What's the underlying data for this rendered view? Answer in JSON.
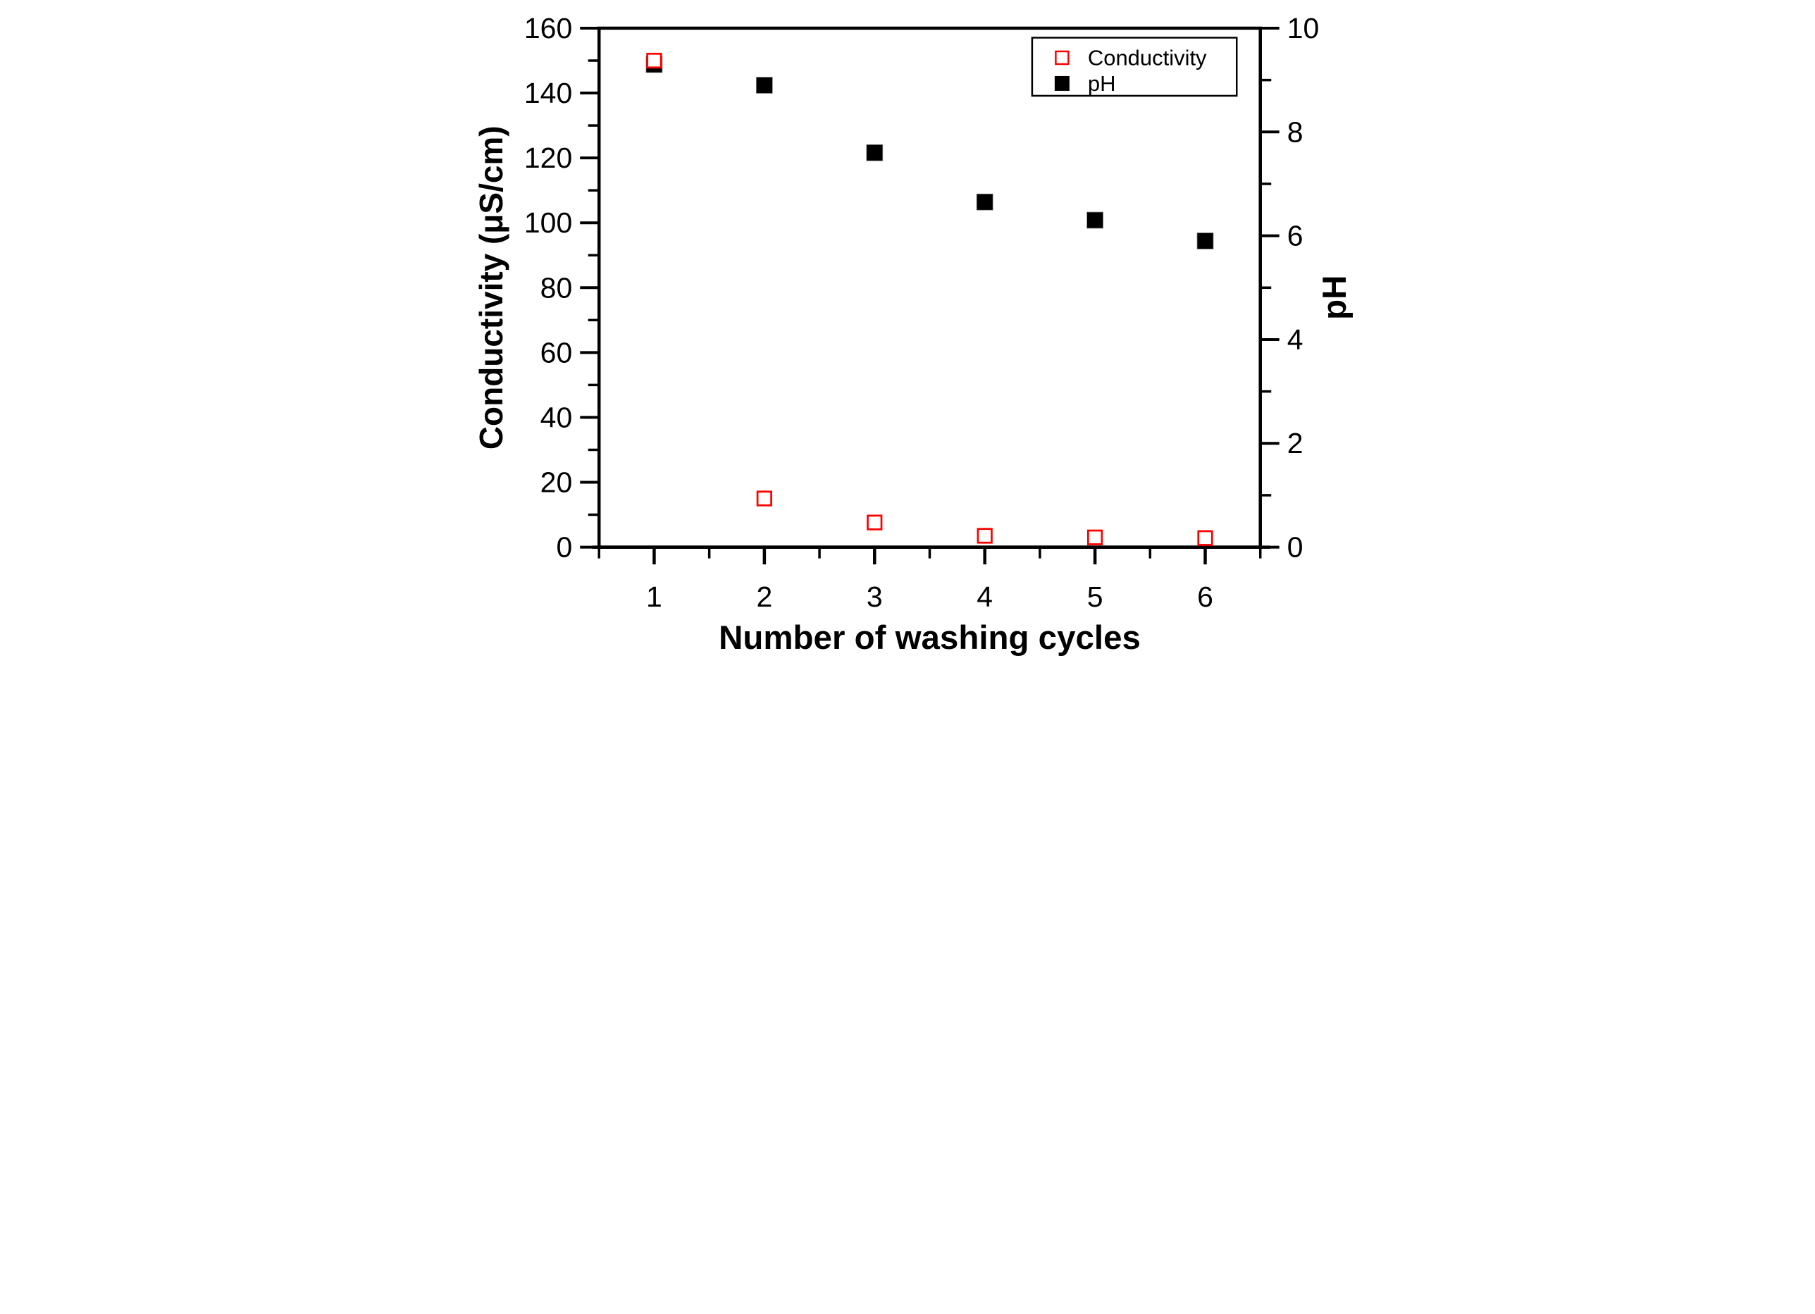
{
  "chart_data": {
    "type": "scatter",
    "title": "",
    "xlabel": "Number of washing cycles",
    "ylabel_left": "Conductivity (μS/cm)",
    "ylabel_right": "pH",
    "x": [
      1,
      2,
      3,
      4,
      5,
      6
    ],
    "xlim": [
      0.5,
      6.5
    ],
    "ylim_left": [
      0,
      160
    ],
    "ylim_right": [
      0,
      10
    ],
    "xticks": [
      1,
      2,
      3,
      4,
      5,
      6
    ],
    "xticks_minor": [
      0.5,
      1.5,
      2.5,
      3.5,
      4.5,
      5.5,
      6.5
    ],
    "yticks_left": [
      0,
      20,
      40,
      60,
      80,
      100,
      120,
      140,
      160
    ],
    "yticks_left_minor": [
      10,
      30,
      50,
      70,
      90,
      110,
      130,
      150
    ],
    "yticks_right": [
      0,
      2,
      4,
      6,
      8,
      10
    ],
    "yticks_right_minor": [
      1,
      3,
      5,
      7,
      9
    ],
    "grid": false,
    "frame_box": true,
    "background": "#ffffff",
    "axis_color": "#000000",
    "series": [
      {
        "name": "Conductivity",
        "axis": "left",
        "marker": "open-square",
        "color": "#ff0000",
        "fill": "#ffffff",
        "values": [
          150,
          15,
          7.6,
          3.5,
          3,
          2.8
        ]
      },
      {
        "name": "pH",
        "axis": "right",
        "marker": "filled-square",
        "color": "#000000",
        "fill": "#000000",
        "values": [
          9.3,
          8.9,
          7.6,
          6.65,
          6.3,
          5.9
        ]
      }
    ],
    "legend": {
      "position": "top-right",
      "border": true,
      "entries": [
        {
          "label": "Conductivity",
          "marker": "open-square",
          "color": "#ff0000"
        },
        {
          "label": "pH",
          "marker": "filled-square",
          "color": "#000000"
        }
      ]
    }
  }
}
